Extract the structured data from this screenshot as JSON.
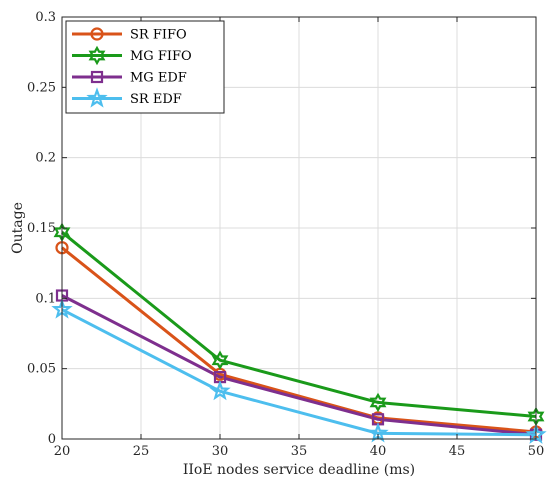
{
  "chart_data": {
    "type": "line",
    "title": "",
    "xlabel": "IIoE nodes service deadline (ms)",
    "ylabel": "Outage",
    "xlim": [
      20,
      50
    ],
    "ylim": [
      0,
      0.3
    ],
    "xticks": [
      20,
      25,
      30,
      35,
      40,
      45,
      50
    ],
    "yticks": [
      0,
      0.05,
      0.1,
      0.15,
      0.2,
      0.25,
      0.3
    ],
    "xtick_labels": [
      "20",
      "25",
      "30",
      "35",
      "40",
      "45",
      "50"
    ],
    "ytick_labels": [
      "0",
      "0.05",
      "0.1",
      "0.15",
      "0.2",
      "0.25",
      "0.3"
    ],
    "grid": true,
    "legend_position": "top-left",
    "x": [
      20,
      30,
      40,
      50
    ],
    "series": [
      {
        "name": "SR FIFO",
        "values": [
          0.136,
          0.046,
          0.015,
          0.005
        ],
        "color": "#D95319",
        "marker": "circle"
      },
      {
        "name": "MG FIFO",
        "values": [
          0.147,
          0.056,
          0.026,
          0.016
        ],
        "color": "#1A9A1A",
        "marker": "hexagram"
      },
      {
        "name": "MG EDF",
        "values": [
          0.102,
          0.044,
          0.014,
          0.003
        ],
        "color": "#7E2F8E",
        "marker": "square"
      },
      {
        "name": "SR EDF",
        "values": [
          0.092,
          0.034,
          0.004,
          0.003
        ],
        "color": "#4DBEEE",
        "marker": "pentagram"
      }
    ]
  }
}
